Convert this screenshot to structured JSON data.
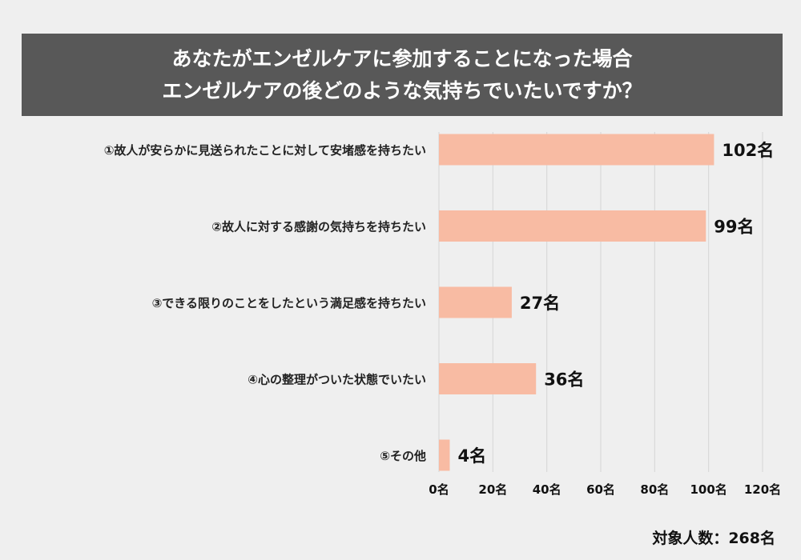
{
  "chart_data": {
    "type": "bar",
    "orientation": "horizontal",
    "title": [
      "あなたがエンゼルケアに参加することになった場合",
      "エンゼルケアの後どのような気持ちでいたいですか？"
    ],
    "categories": [
      "①故人が安らかに見送られたことに対して安堵感を持ちたい",
      "②故人に対する感謝の気持ちを持ちたい",
      "③できる限りのことをしたという満足感を持ちたい",
      "④心の整理がついた状態でいたい",
      "⑤その他"
    ],
    "values": [
      102,
      99,
      27,
      36,
      4
    ],
    "data_labels": [
      "102名",
      "99名",
      "27名",
      "36名",
      "4名"
    ],
    "xlim": [
      0,
      120
    ],
    "xticks": [
      "0名",
      "20名",
      "40名",
      "60名",
      "80名",
      "100名",
      "120名"
    ],
    "grid": true,
    "bar_color": "#f8bba3",
    "footer": "対象人数：268名"
  }
}
